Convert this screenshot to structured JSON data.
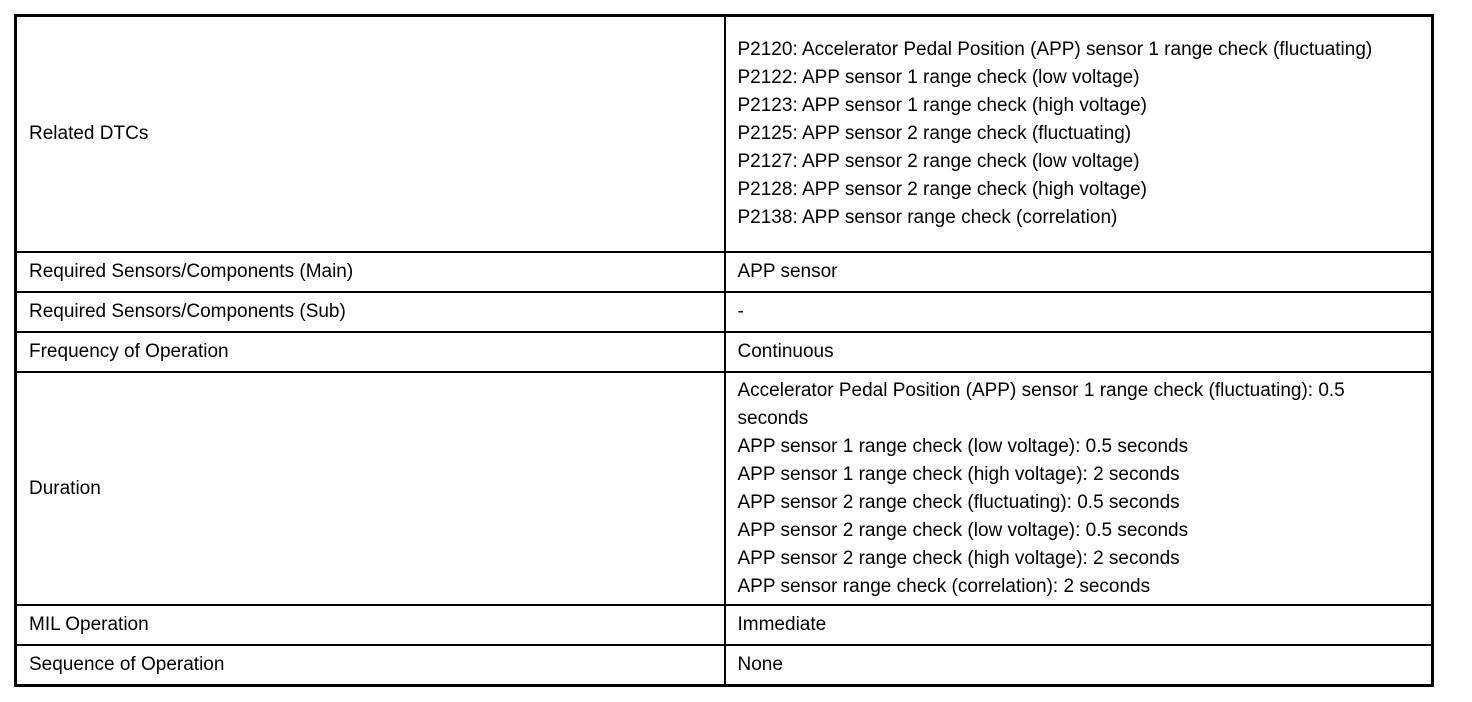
{
  "table": {
    "rows": [
      {
        "label": "Related DTCs",
        "lines": [
          "P2120: Accelerator Pedal Position (APP) sensor 1 range check (fluctuating)",
          "P2122: APP sensor 1 range check (low voltage)",
          "P2123: APP sensor 1 range check (high voltage)",
          "P2125: APP sensor 2 range check (fluctuating)",
          "P2127: APP sensor 2 range check (low voltage)",
          "P2128: APP sensor 2 range check (high voltage)",
          "P2138: APP sensor range check (correlation)"
        ]
      },
      {
        "label": "Required Sensors/Components (Main)",
        "lines": [
          "APP sensor"
        ]
      },
      {
        "label": "Required Sensors/Components (Sub)",
        "lines": [
          "-"
        ]
      },
      {
        "label": "Frequency of Operation",
        "lines": [
          "Continuous"
        ]
      },
      {
        "label": "Duration",
        "lines": [
          "Accelerator Pedal Position (APP) sensor 1 range check (fluctuating): 0.5 seconds",
          "APP sensor 1 range check (low voltage): 0.5 seconds",
          "APP sensor 1 range check (high voltage): 2 seconds",
          "APP sensor 2 range check (fluctuating): 0.5 seconds",
          "APP sensor 2 range check (low voltage): 0.5 seconds",
          "APP sensor 2 range check (high voltage): 2 seconds",
          "APP sensor range check (correlation): 2 seconds"
        ]
      },
      {
        "label": "MIL Operation",
        "lines": [
          "Immediate"
        ]
      },
      {
        "label": "Sequence of Operation",
        "lines": [
          "None"
        ]
      }
    ],
    "colors": {
      "border": "#000000",
      "text": "#000000",
      "background": "#ffffff"
    }
  }
}
